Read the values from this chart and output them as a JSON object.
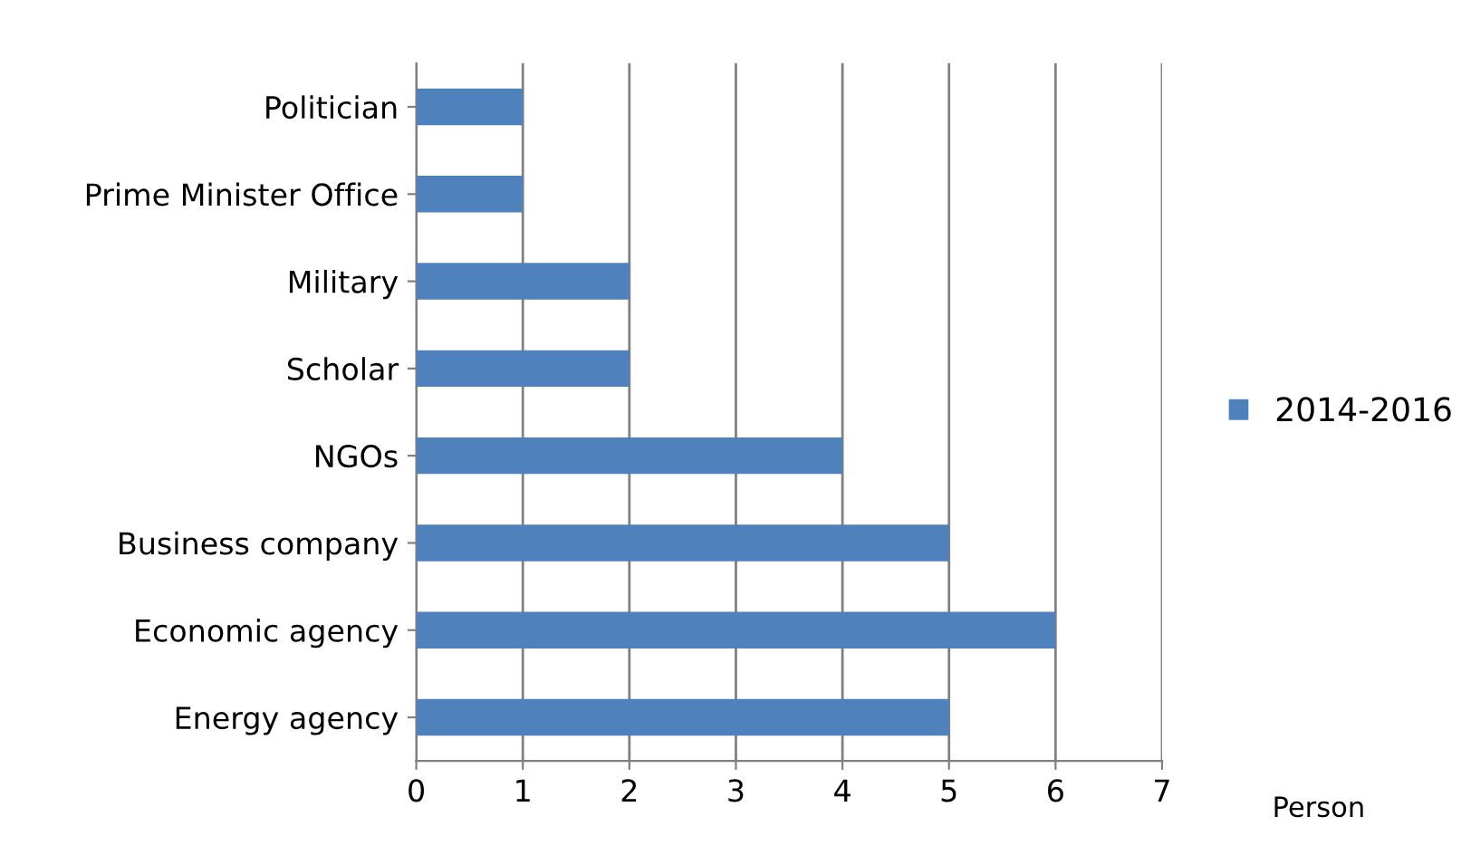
{
  "chart_data": {
    "type": "bar",
    "orientation": "horizontal",
    "categories": [
      "Politician",
      "Prime Minister Office",
      "Military",
      "Scholar",
      "NGOs",
      "Business company",
      "Economic agency",
      "Energy agency"
    ],
    "series": [
      {
        "name": "2014-2016",
        "color": "#4f81bd",
        "values": [
          1,
          1,
          2,
          2,
          4,
          5,
          6,
          5
        ]
      }
    ],
    "xlabel": "Person",
    "xlim": [
      0,
      7
    ],
    "xticks": [
      0,
      1,
      2,
      3,
      4,
      5,
      6,
      7
    ],
    "grid": "x",
    "legend": "right"
  }
}
